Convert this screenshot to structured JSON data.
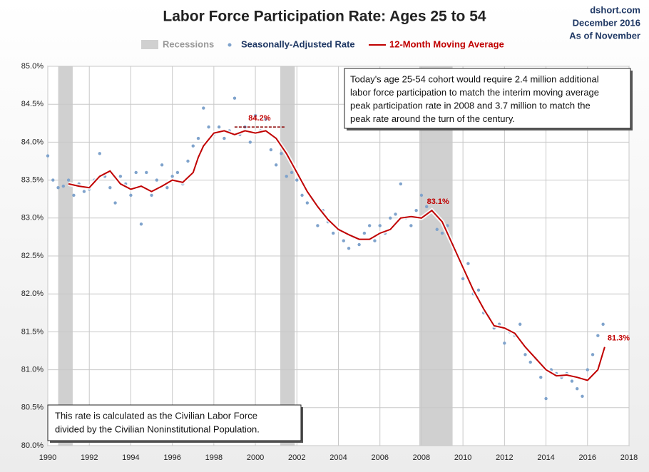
{
  "chart_data": {
    "type": "scatter_line",
    "title": "Labor Force Participation Rate: Ages 25 to 54",
    "source_lines": [
      "dshort.com",
      "December 2016",
      "As of November"
    ],
    "recessions_name": "Recessions",
    "recessions": [
      [
        1990.5,
        1991.2
      ],
      [
        2001.2,
        2001.9
      ],
      [
        2007.9,
        2009.5
      ]
    ],
    "recession_color": "#d0d0d0",
    "series": [
      {
        "name": "Seasonally-Adjusted Rate",
        "color": "#7fa3cc",
        "kind": "scatter",
        "x": [
          1990.0,
          1990.25,
          1990.5,
          1990.75,
          1991.0,
          1991.25,
          1991.5,
          1991.75,
          1992.0,
          1992.25,
          1992.5,
          1992.75,
          1993.0,
          1993.25,
          1993.5,
          1993.75,
          1994.0,
          1994.25,
          1994.5,
          1994.75,
          1995.0,
          1995.25,
          1995.5,
          1995.75,
          1996.0,
          1996.25,
          1996.5,
          1996.75,
          1997.0,
          1997.25,
          1997.5,
          1997.75,
          1998.0,
          1998.25,
          1998.5,
          1998.75,
          1999.0,
          1999.25,
          1999.5,
          1999.75,
          2000.0,
          2000.25,
          2000.5,
          2000.75,
          2001.0,
          2001.25,
          2001.5,
          2001.75,
          2002.0,
          2002.25,
          2002.5,
          2002.75,
          2003.0,
          2003.25,
          2003.5,
          2003.75,
          2004.0,
          2004.25,
          2004.5,
          2004.75,
          2005.0,
          2005.25,
          2005.5,
          2005.75,
          2006.0,
          2006.25,
          2006.5,
          2006.75,
          2007.0,
          2007.25,
          2007.5,
          2007.75,
          2008.0,
          2008.25,
          2008.5,
          2008.75,
          2009.0,
          2009.25,
          2009.5,
          2009.75,
          2010.0,
          2010.25,
          2010.5,
          2010.75,
          2011.0,
          2011.25,
          2011.5,
          2011.75,
          2012.0,
          2012.25,
          2012.5,
          2012.75,
          2013.0,
          2013.25,
          2013.5,
          2013.75,
          2014.0,
          2014.25,
          2014.5,
          2014.75,
          2015.0,
          2015.25,
          2015.5,
          2015.75,
          2016.0,
          2016.25,
          2016.5,
          2016.75
        ],
        "values": [
          83.82,
          83.5,
          83.4,
          83.42,
          83.5,
          83.3,
          83.45,
          83.35,
          83.38,
          83.5,
          83.85,
          83.55,
          83.4,
          83.2,
          83.55,
          83.45,
          83.3,
          83.6,
          82.92,
          83.6,
          83.3,
          83.5,
          83.7,
          83.4,
          83.55,
          83.6,
          83.45,
          83.75,
          83.95,
          84.05,
          84.45,
          84.2,
          84.1,
          84.2,
          84.05,
          84.15,
          84.58,
          84.1,
          84.2,
          84.0,
          84.35,
          84.15,
          84.3,
          83.9,
          83.7,
          83.85,
          83.55,
          83.6,
          83.5,
          83.3,
          83.2,
          83.25,
          82.9,
          83.1,
          82.95,
          82.8,
          82.85,
          82.7,
          82.6,
          82.75,
          82.65,
          82.8,
          82.9,
          82.7,
          82.9,
          82.8,
          83.0,
          83.05,
          83.45,
          83.0,
          82.9,
          83.1,
          83.3,
          83.15,
          83.1,
          82.85,
          82.8,
          82.9,
          82.65,
          82.5,
          82.2,
          82.4,
          82.0,
          82.05,
          81.75,
          81.7,
          81.55,
          81.6,
          81.35,
          81.5,
          81.45,
          81.6,
          81.2,
          81.1,
          81.15,
          80.9,
          80.62,
          81.0,
          80.95,
          80.9,
          80.95,
          80.85,
          80.75,
          80.65,
          81.0,
          81.2,
          81.45,
          81.6
        ]
      },
      {
        "name": "12-Month Moving Average",
        "color": "#c00000",
        "kind": "line",
        "x": [
          1991.0,
          1991.5,
          1992.0,
          1992.5,
          1993.0,
          1993.5,
          1994.0,
          1994.5,
          1995.0,
          1995.5,
          1996.0,
          1996.5,
          1997.0,
          1997.25,
          1997.5,
          1998.0,
          1998.5,
          1999.0,
          1999.5,
          2000.0,
          2000.5,
          2001.0,
          2001.5,
          2002.0,
          2002.5,
          2003.0,
          2003.5,
          2004.0,
          2004.5,
          2005.0,
          2005.5,
          2006.0,
          2006.5,
          2007.0,
          2007.5,
          2008.0,
          2008.5,
          2009.0,
          2009.5,
          2010.0,
          2010.5,
          2011.0,
          2011.5,
          2012.0,
          2012.5,
          2013.0,
          2013.5,
          2014.0,
          2014.5,
          2015.0,
          2015.5,
          2016.0,
          2016.5,
          2016.83
        ],
        "values": [
          83.45,
          83.42,
          83.4,
          83.55,
          83.62,
          83.45,
          83.38,
          83.42,
          83.35,
          83.42,
          83.5,
          83.47,
          83.6,
          83.8,
          83.95,
          84.12,
          84.15,
          84.1,
          84.15,
          84.12,
          84.15,
          84.05,
          83.85,
          83.6,
          83.35,
          83.15,
          82.98,
          82.85,
          82.78,
          82.72,
          82.72,
          82.8,
          82.85,
          83.0,
          83.02,
          83.0,
          83.1,
          82.95,
          82.65,
          82.35,
          82.05,
          81.8,
          81.58,
          81.55,
          81.48,
          81.3,
          81.15,
          81.0,
          80.92,
          80.93,
          80.9,
          80.86,
          81.0,
          81.3
        ]
      }
    ],
    "peak_labels": [
      {
        "value": 84.2,
        "label": "84.2%",
        "x": 2000.2
      },
      {
        "value": 83.1,
        "label": "83.1%",
        "x": 2008.8
      },
      {
        "value": 81.3,
        "label": "81.3%",
        "x": 2017.5
      }
    ],
    "xlim": [
      1990,
      2018
    ],
    "xticks": [
      1990,
      1992,
      1994,
      1996,
      1998,
      2000,
      2002,
      2004,
      2006,
      2008,
      2010,
      2012,
      2014,
      2016,
      2018
    ],
    "ylim": [
      80.0,
      85.0
    ],
    "yticks": [
      {
        "value": 80.0,
        "label": "80.0%"
      },
      {
        "value": 80.5,
        "label": "80.5%"
      },
      {
        "value": 81.0,
        "label": "81.0%"
      },
      {
        "value": 81.5,
        "label": "81.5%"
      },
      {
        "value": 82.0,
        "label": "82.0%"
      },
      {
        "value": 82.5,
        "label": "82.5%"
      },
      {
        "value": 83.0,
        "label": "83.0%"
      },
      {
        "value": 83.5,
        "label": "83.5%"
      },
      {
        "value": 84.0,
        "label": "84.0%"
      },
      {
        "value": 84.5,
        "label": "84.5%"
      },
      {
        "value": 85.0,
        "label": "85.0%"
      }
    ],
    "grid": true,
    "callout_lines": [
      "Today's age 25-54  cohort would require 2.4 million additional",
      "labor force participation to match the interim moving average",
      "peak participation rate in 2008  and 3.7 million to match the",
      "peak rate around the turn of the century."
    ],
    "note_lines": [
      "This rate is calculated as the Civilian Labor Force",
      "divided by the Civilian Noninstitutional Population."
    ]
  }
}
